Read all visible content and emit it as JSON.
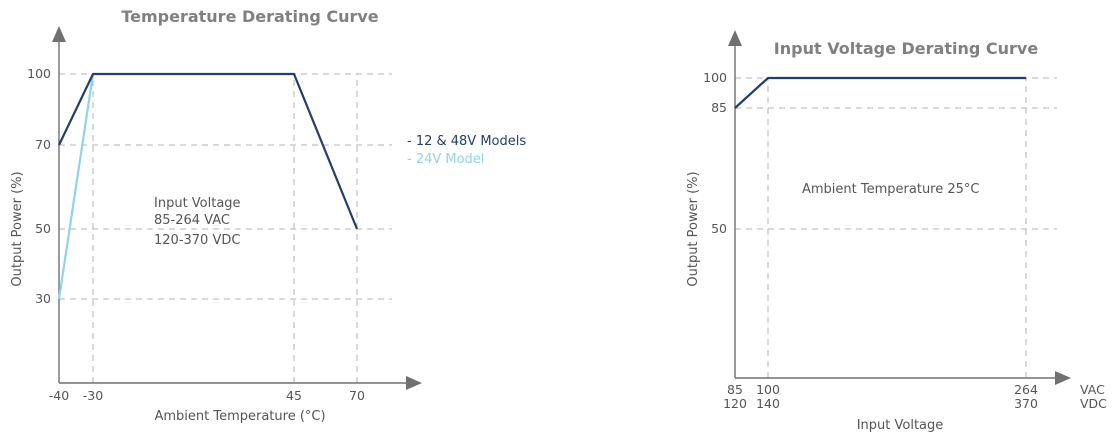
{
  "colors": {
    "series_dark": "#1f3f6e",
    "series_light": "#8fd3ee",
    "axis": "#707070",
    "grid": "#b3b3b3",
    "text": "#555555"
  },
  "chart_data": [
    {
      "type": "line",
      "title": "Temperature Derating Curve",
      "xlabel": "Ambient Temperature (°C)",
      "ylabel": "Output Power (%)",
      "x_ticks": [
        "-40",
        "-30",
        "45",
        "70"
      ],
      "y_ticks": [
        "30",
        "50",
        "70",
        "100"
      ],
      "xlim": [
        -40,
        70
      ],
      "ylim": [
        0,
        100
      ],
      "grid": true,
      "legend_position": "right",
      "annotation": [
        "Input Voltage",
        "85-264 VAC",
        "120-370 VDC"
      ],
      "series": [
        {
          "name": "- 12 & 48V Models",
          "color": "#1f3f6e",
          "x": [
            -40,
            -30,
            45,
            70
          ],
          "y": [
            70,
            100,
            100,
            50
          ]
        },
        {
          "name": "- 24V Model",
          "color": "#8fd3ee",
          "x": [
            -40,
            -30
          ],
          "y": [
            30,
            100
          ]
        }
      ]
    },
    {
      "type": "line",
      "title": "Input Voltage Derating Curve",
      "xlabel": "Input Voltage",
      "ylabel": "Output Power (%)",
      "x_ticks_vac": [
        "85",
        "100",
        "264"
      ],
      "x_ticks_vdc": [
        "120",
        "140",
        "370"
      ],
      "x_unit_vac": "VAC",
      "x_unit_vdc": "VDC",
      "y_ticks": [
        "50",
        "85",
        "100"
      ],
      "xlim_vac": [
        85,
        264
      ],
      "ylim": [
        0,
        100
      ],
      "grid": true,
      "annotation": "Ambient Temperature 25°C",
      "series": [
        {
          "color": "#1f3f6e",
          "x_vac": [
            85,
            100,
            264
          ],
          "y": [
            85,
            100,
            100
          ]
        }
      ]
    }
  ]
}
